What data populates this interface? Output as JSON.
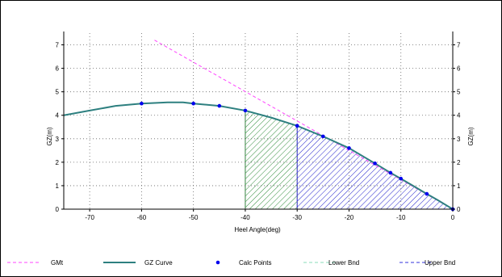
{
  "chart_data": {
    "type": "line",
    "xlabel": "Heel Angle(deg)",
    "ylabel_left": "GZ(m)",
    "ylabel_right": "GZ(m)",
    "xlim": [
      -75,
      0
    ],
    "ylim": [
      0,
      7.5
    ],
    "grid": true,
    "legend_placement": "bottom",
    "x_ticks": [
      -70,
      -60,
      -50,
      -40,
      -30,
      -20,
      -10,
      0
    ],
    "x_tick_labels": [
      "-70",
      "-60",
      "-50",
      "-40",
      "-30",
      "-20",
      "-10",
      "0"
    ],
    "y_ticks": [
      0,
      1,
      2,
      3,
      4,
      5,
      6,
      7
    ],
    "y_tick_labels": [
      "0",
      "1",
      "2",
      "3",
      "4",
      "5",
      "6",
      "7"
    ],
    "series": [
      {
        "name": "GMt",
        "style": "dashed",
        "color": "#ff44ff",
        "x": [
          -57.5,
          0
        ],
        "y": [
          7.2,
          0
        ]
      },
      {
        "name": "GZ Curve",
        "style": "solid",
        "color": "#2e8080",
        "x": [
          -75,
          -70,
          -65,
          -60,
          -55,
          -52,
          -50,
          -45,
          -40,
          -35,
          -30,
          -25,
          -20,
          -15,
          -12,
          -10,
          -5,
          -3,
          0
        ],
        "y": [
          4.0,
          4.2,
          4.4,
          4.5,
          4.55,
          4.55,
          4.5,
          4.4,
          4.2,
          3.9,
          3.55,
          3.1,
          2.6,
          1.95,
          1.55,
          1.3,
          0.65,
          0.4,
          0.0
        ]
      },
      {
        "name": "Calc Points",
        "style": "markers",
        "color": "#0000ee",
        "x": [
          -60,
          -50,
          -45,
          -40,
          -30,
          -25,
          -20,
          -15,
          -12,
          -10,
          -5,
          0
        ],
        "y": [
          4.5,
          4.5,
          4.4,
          4.2,
          3.55,
          3.1,
          2.6,
          1.95,
          1.55,
          1.3,
          0.65,
          0.0
        ]
      }
    ],
    "shaded_areas": [
      {
        "name": "Lower Bnd",
        "x_from": -40,
        "x_to": -30,
        "color": "#2e8b3a",
        "hatch": "diagonal"
      },
      {
        "name": "Upper Bnd",
        "x_from": -30,
        "x_to": 0,
        "color": "#2020cc",
        "hatch": "diagonal"
      }
    ],
    "legend": [
      {
        "name": "GMt",
        "style": "dashed",
        "color": "#ff44ff"
      },
      {
        "name": "GZ Curve",
        "style": "solid",
        "color": "#2e8080"
      },
      {
        "name": "Calc Points",
        "style": "marker",
        "color": "#0000ee"
      },
      {
        "name": "Lower Bnd",
        "style": "dashed",
        "color": "#88ddbb"
      },
      {
        "name": "Upper Bnd",
        "style": "dashed",
        "color": "#3333dd"
      }
    ]
  }
}
